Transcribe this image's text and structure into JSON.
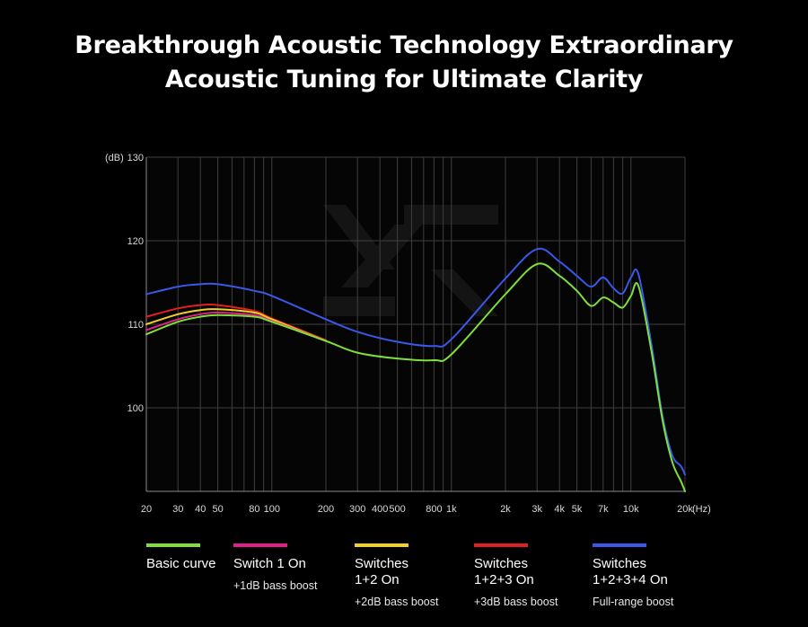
{
  "header": {
    "title_line1": "Breakthrough Acoustic Technology Extraordinary",
    "title_line2": "Acoustic Tuning for Ultimate Clarity"
  },
  "chart_data": {
    "type": "line",
    "title": "Breakthrough Acoustic Technology Extraordinary Acoustic Tuning for Ultimate Clarity",
    "xlabel": "(Hz)",
    "ylabel": "(dB)",
    "x_scale": "log",
    "xlim": [
      20,
      20000
    ],
    "ylim": [
      90,
      130
    ],
    "y_ticks": [
      100,
      110,
      120,
      130
    ],
    "x_ticks": [
      {
        "value": 20,
        "label": "20"
      },
      {
        "value": 30,
        "label": "30"
      },
      {
        "value": 40,
        "label": "40"
      },
      {
        "value": 50,
        "label": "50"
      },
      {
        "value": 80,
        "label": "80"
      },
      {
        "value": 100,
        "label": "100"
      },
      {
        "value": 200,
        "label": "200"
      },
      {
        "value": 300,
        "label": "300"
      },
      {
        "value": 400,
        "label": "400"
      },
      {
        "value": 500,
        "label": "500"
      },
      {
        "value": 800,
        "label": "800"
      },
      {
        "value": 1000,
        "label": "1k"
      },
      {
        "value": 2000,
        "label": "2k"
      },
      {
        "value": 3000,
        "label": "3k"
      },
      {
        "value": 4000,
        "label": "4k"
      },
      {
        "value": 5000,
        "label": "5k"
      },
      {
        "value": 7000,
        "label": "7k"
      },
      {
        "value": 10000,
        "label": "10k"
      },
      {
        "value": 20000,
        "label": "20k"
      }
    ],
    "grid": true,
    "legend_position": "bottom",
    "series": [
      {
        "name": "Basic curve",
        "description": "",
        "color": "#7ee03a",
        "x": [
          20,
          30,
          40,
          50,
          80,
          100,
          200,
          300,
          500,
          800,
          1000,
          2000,
          3000,
          4000,
          5000,
          6000,
          7000,
          8000,
          9000,
          10000,
          11000,
          13000,
          15000,
          17000,
          19000,
          20000
        ],
        "y": [
          108.8,
          110.3,
          110.9,
          111.1,
          110.9,
          110.3,
          108.0,
          106.6,
          105.9,
          105.7,
          106.4,
          113.6,
          117.2,
          115.8,
          114.0,
          112.2,
          113.2,
          112.6,
          112.0,
          113.4,
          114.6,
          106.8,
          98.5,
          93.5,
          91.2,
          90.0
        ]
      },
      {
        "name": "Switch 1 On",
        "description": "+1dB bass boost",
        "color": "#e0208c",
        "x": [
          20,
          30,
          40,
          50,
          80,
          100,
          200
        ],
        "y": [
          109.3,
          110.6,
          111.2,
          111.4,
          111.1,
          110.4,
          108.0
        ]
      },
      {
        "name": "Switches\n1+2 On",
        "description": "+2dB bass boost",
        "color": "#f2d024",
        "x": [
          20,
          30,
          40,
          50,
          80,
          100,
          200
        ],
        "y": [
          110.0,
          111.2,
          111.7,
          111.8,
          111.4,
          110.6,
          108.0
        ]
      },
      {
        "name": "Switches\n1+2+3 On",
        "description": "+3dB bass boost",
        "color": "#e02020",
        "x": [
          20,
          30,
          40,
          50,
          80,
          100,
          200
        ],
        "y": [
          110.9,
          111.9,
          112.3,
          112.3,
          111.6,
          110.7,
          108.1
        ]
      },
      {
        "name": "Switches\n1+2+3+4 On",
        "description": "Full-range boost",
        "color": "#3a58e8",
        "x": [
          20,
          30,
          40,
          50,
          80,
          100,
          200,
          300,
          500,
          800,
          1000,
          2000,
          3000,
          4000,
          5000,
          6000,
          7000,
          8000,
          9000,
          10000,
          11000,
          13000,
          15000,
          17000,
          19000,
          20000
        ],
        "y": [
          113.6,
          114.5,
          114.8,
          114.8,
          114.0,
          113.4,
          110.6,
          109.1,
          107.9,
          107.4,
          108.2,
          115.5,
          119.0,
          117.5,
          115.8,
          114.5,
          115.6,
          114.3,
          113.7,
          115.6,
          116.0,
          107.6,
          99.0,
          94.3,
          93.0,
          92.0
        ]
      }
    ]
  }
}
